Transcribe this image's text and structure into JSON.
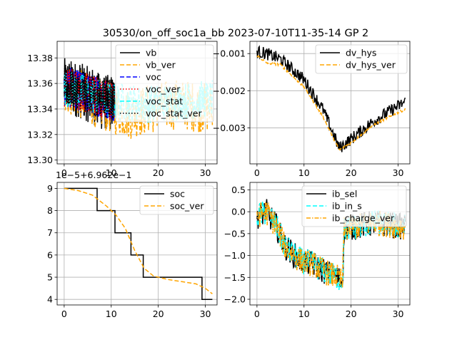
{
  "figure": {
    "title": "30530/on_off_soc1a_bb   2023-07-10T11-35-14 GP 2"
  },
  "chart_data": [
    {
      "type": "line",
      "panel": "top-left",
      "x_ticks": [
        "0",
        "10",
        "20",
        "30"
      ],
      "y_ticks": [
        "13.30",
        "13.32",
        "13.34",
        "13.36",
        "13.38"
      ],
      "xlim": [
        -1.5,
        32.5
      ],
      "ylim": [
        13.297,
        13.393
      ],
      "grid": true,
      "legend_position": "upper-right",
      "series": [
        {
          "name": "vb",
          "color": "#000000",
          "style": "solid",
          "x_end": 10.7,
          "base": [
            [
              0,
              13.358
            ],
            [
              3,
              13.355
            ],
            [
              6,
              13.35
            ],
            [
              8,
              13.345
            ],
            [
              10.7,
              13.345
            ]
          ],
          "noise": 0.022
        },
        {
          "name": "vb_ver",
          "color": "#ffa500",
          "style": "dashed",
          "x_end": 31.5,
          "base": [
            [
              0,
              13.356
            ],
            [
              3,
              13.352
            ],
            [
              6,
              13.346
            ],
            [
              10,
              13.34
            ],
            [
              14,
              13.336
            ],
            [
              18,
              13.34
            ],
            [
              24,
              13.344
            ],
            [
              31.5,
              13.34
            ]
          ],
          "noise": 0.02
        },
        {
          "name": "voc",
          "color": "#0000ff",
          "style": "dashed",
          "x_end": 10.7,
          "base": [
            [
              0,
              13.358
            ],
            [
              5,
              13.352
            ],
            [
              10.7,
              13.346
            ]
          ],
          "noise": 0.016
        },
        {
          "name": "voc_ver",
          "color": "#ff0000",
          "style": "dotted",
          "x_end": 10.7,
          "base": [
            [
              0,
              13.358
            ],
            [
              5,
              13.352
            ],
            [
              10.7,
              13.346
            ]
          ],
          "noise": 0.016
        },
        {
          "name": "voc_stat",
          "color": "#00ffff",
          "style": "dashed",
          "x_end": 31.5,
          "base": [
            [
              0,
              13.357
            ],
            [
              5,
              13.352
            ],
            [
              10,
              13.346
            ],
            [
              18,
              13.344
            ],
            [
              31.5,
              13.348
            ]
          ],
          "noise": 0.015
        },
        {
          "name": "voc_stat_ver",
          "color": "#000000",
          "style": "dotted",
          "x_end": 10.7,
          "base": [
            [
              0,
              13.357
            ],
            [
              5,
              13.352
            ],
            [
              10.7,
              13.346
            ]
          ],
          "noise": 0.015
        }
      ]
    },
    {
      "type": "line",
      "panel": "top-right",
      "x_ticks": [
        "0",
        "10",
        "20",
        "30"
      ],
      "y_ticks": [
        "−0.003",
        "−0.002",
        "−0.001"
      ],
      "y_tick_values": [
        -0.003,
        -0.002,
        -0.001
      ],
      "xlim": [
        -1.5,
        32.5
      ],
      "ylim": [
        -0.00397,
        -0.00067
      ],
      "grid": true,
      "legend_position": "upper-right",
      "series": [
        {
          "name": "dv_hys",
          "color": "#000000",
          "style": "solid",
          "x_end": 31.5,
          "base": [
            [
              0,
              -0.00095
            ],
            [
              2,
              -0.001
            ],
            [
              5,
              -0.00115
            ],
            [
              10,
              -0.0017
            ],
            [
              14,
              -0.0025
            ],
            [
              17.5,
              -0.00355
            ],
            [
              20,
              -0.0033
            ],
            [
              25,
              -0.0028
            ],
            [
              31.5,
              -0.0023
            ]
          ],
          "noise": 0.00017
        },
        {
          "name": "dv_hys_ver",
          "color": "#ffa500",
          "style": "dashed",
          "x_end": 31.5,
          "base": [
            [
              0,
              -0.00105
            ],
            [
              2,
              -0.00125
            ],
            [
              5,
              -0.0013
            ],
            [
              10,
              -0.0019
            ],
            [
              14,
              -0.0027
            ],
            [
              17.5,
              -0.0036
            ],
            [
              20,
              -0.0034
            ],
            [
              25,
              -0.0029
            ],
            [
              31.5,
              -0.0025
            ]
          ],
          "noise": 3e-05
        }
      ]
    },
    {
      "type": "line",
      "panel": "bottom-left",
      "offset_text": "1e−5+6.962e−1",
      "x_ticks": [
        "0",
        "10",
        "20",
        "30"
      ],
      "y_ticks": [
        "4",
        "5",
        "6",
        "7",
        "8",
        "9"
      ],
      "xlim": [
        -1.5,
        32.5
      ],
      "ylim": [
        3.75,
        9.27
      ],
      "grid": true,
      "legend_position": "upper-right",
      "series": [
        {
          "name": "soc",
          "color": "#000000",
          "style": "solid",
          "points": [
            [
              0,
              9
            ],
            [
              7,
              9
            ],
            [
              7,
              8
            ],
            [
              10.8,
              8
            ],
            [
              10.8,
              7
            ],
            [
              14.2,
              7
            ],
            [
              14.2,
              6
            ],
            [
              16.8,
              6
            ],
            [
              16.8,
              5
            ],
            [
              29.3,
              5
            ],
            [
              29.3,
              4
            ],
            [
              31.5,
              4
            ]
          ]
        },
        {
          "name": "soc_ver",
          "color": "#ffa500",
          "style": "dashed",
          "points": [
            [
              0,
              9
            ],
            [
              3,
              8.9
            ],
            [
              6,
              8.7
            ],
            [
              9,
              8.2
            ],
            [
              11,
              7.8
            ],
            [
              13,
              7.2
            ],
            [
              15,
              6.2
            ],
            [
              17,
              5.4
            ],
            [
              19,
              5.05
            ],
            [
              22,
              4.9
            ],
            [
              25,
              4.8
            ],
            [
              28,
              4.7
            ],
            [
              30,
              4.5
            ],
            [
              31.5,
              4.25
            ]
          ]
        }
      ]
    },
    {
      "type": "line",
      "panel": "bottom-right",
      "x_ticks": [
        "0",
        "10",
        "20",
        "30"
      ],
      "y_ticks": [
        "−2.0",
        "−1.5",
        "−1.0",
        "−0.5",
        "0.0",
        "0.5"
      ],
      "y_tick_values": [
        -2.0,
        -1.5,
        -1.0,
        -0.5,
        0.0,
        0.5
      ],
      "xlim": [
        -1.5,
        32.5
      ],
      "ylim": [
        -2.13,
        0.67
      ],
      "grid": true,
      "legend_position": "upper-right",
      "series": [
        {
          "name": "ib_sel",
          "color": "#000000",
          "style": "solid",
          "x_end": 31.5,
          "base": [
            [
              0,
              -0.1
            ],
            [
              2,
              0.0
            ],
            [
              4,
              -0.3
            ],
            [
              6,
              -0.8
            ],
            [
              9,
              -1.1
            ],
            [
              12,
              -1.2
            ],
            [
              15,
              -1.4
            ],
            [
              17,
              -1.5
            ],
            [
              18.2,
              -1.6
            ],
            [
              18.5,
              -0.4
            ],
            [
              25,
              -0.25
            ],
            [
              31.5,
              -0.35
            ]
          ],
          "noise": 0.3
        },
        {
          "name": "ib_in_s",
          "color": "#00ffff",
          "style": "dashed",
          "x_end": 31.5,
          "base": [
            [
              0,
              -0.1
            ],
            [
              2,
              0.0
            ],
            [
              4,
              -0.3
            ],
            [
              6,
              -0.8
            ],
            [
              9,
              -1.1
            ],
            [
              12,
              -1.2
            ],
            [
              15,
              -1.4
            ],
            [
              17,
              -1.5
            ],
            [
              18.2,
              -1.6
            ],
            [
              18.5,
              -0.4
            ],
            [
              25,
              -0.25
            ],
            [
              31.5,
              -0.35
            ]
          ],
          "noise": 0.3
        },
        {
          "name": "ib_charge_ver",
          "color": "#ffa500",
          "style": "dashdot",
          "x_end": 31.5,
          "base": [
            [
              0,
              -0.1
            ],
            [
              2,
              0.0
            ],
            [
              4,
              -0.3
            ],
            [
              6,
              -0.8
            ],
            [
              9,
              -1.1
            ],
            [
              12,
              -1.2
            ],
            [
              15,
              -1.4
            ],
            [
              17,
              -1.5
            ],
            [
              18.2,
              -1.6
            ],
            [
              18.5,
              -0.4
            ],
            [
              25,
              -0.25
            ],
            [
              31.5,
              -0.35
            ]
          ],
          "noise": 0.3
        }
      ]
    }
  ]
}
